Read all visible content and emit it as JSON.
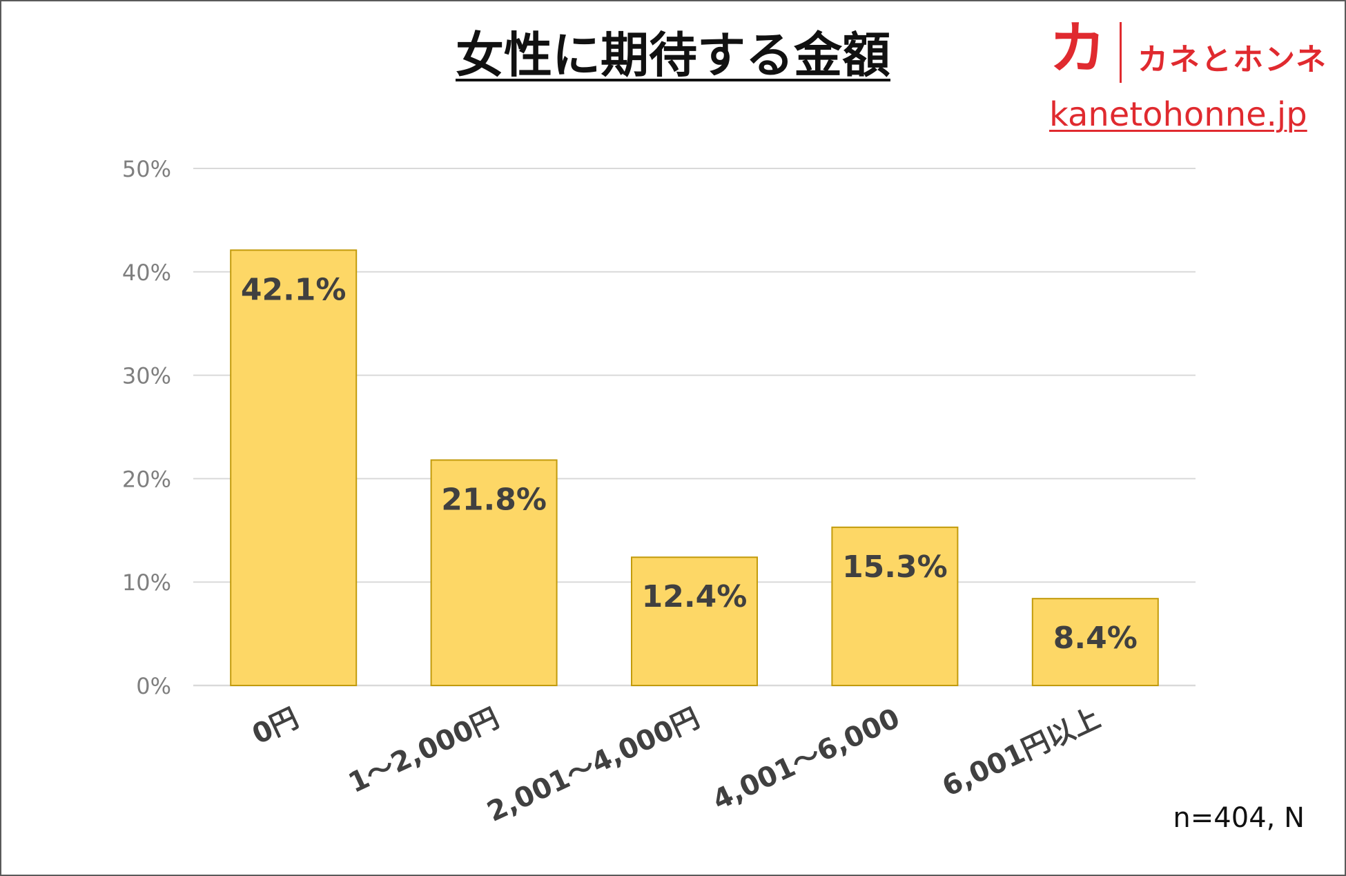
{
  "header": {
    "title": "女性に期待する金額"
  },
  "brand": {
    "mark": "カ",
    "name": "カネとホンネ",
    "site": "kanetohonne.jp",
    "color": "#e02a2f"
  },
  "footnote": "n=404, N",
  "colors": {
    "bar_fill": "#fdd766",
    "bar_stroke": "#c29b0c",
    "grid": "#d9d9d9",
    "tick_text": "#7f7f7f",
    "category_text": "#404040",
    "value_text": "#404040"
  },
  "chart_data": {
    "type": "bar",
    "title": "女性に期待する金額",
    "categories": [
      "0円",
      "1～2,000円",
      "2,001～4,000円",
      "4,001～6,000",
      "6,001円以上"
    ],
    "values": [
      42.1,
      21.8,
      12.4,
      15.3,
      8.4
    ],
    "data_labels": [
      "42.1%",
      "21.8%",
      "12.4%",
      "15.3%",
      "8.4%"
    ],
    "y_ticks": [
      "0%",
      "10%",
      "20%",
      "30%",
      "40%",
      "50%"
    ],
    "ylim": [
      0,
      50
    ],
    "xlabel": "",
    "ylabel": "",
    "grid": true,
    "legend": "none"
  }
}
